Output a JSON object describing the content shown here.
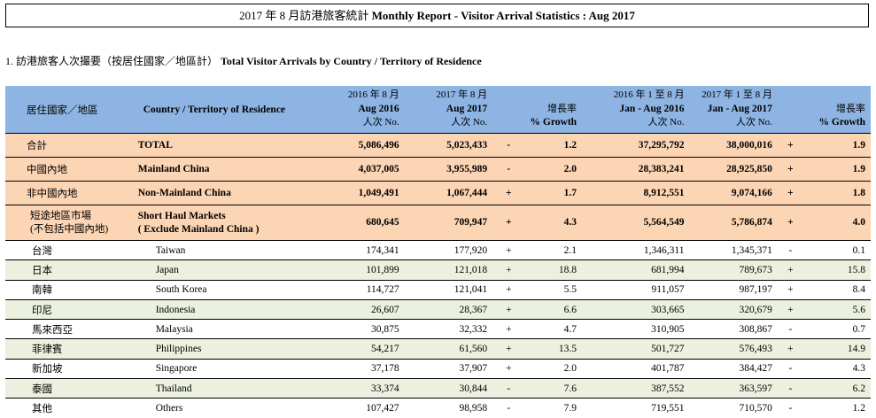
{
  "title": {
    "zh": "2017 年 8 月訪港旅客統計",
    "en": "Monthly Report - Visitor Arrival Statistics : Aug 2017"
  },
  "section": {
    "zh": "1.  訪港旅客人次撮要（按居住國家／地區計）",
    "en": "Total Visitor Arrivals by Country / Territory of Residence"
  },
  "headers": {
    "col_zh": "居住國家／地區",
    "col_en": "Country / Territory of Residence",
    "c1_top": "2016 年 8 月",
    "c1_mid": "Aug 2016",
    "c1_bot": "人次  No.",
    "c2_top": "2017 年 8 月",
    "c2_mid": "Aug 2017",
    "c2_bot": "人次  No.",
    "g1_top": "增長率",
    "g1_bot": "% Growth",
    "c3_top": "2016 年 1 至 8 月",
    "c3_mid": "Jan - Aug 2016",
    "c3_bot": "人次  No.",
    "c4_top": "2017 年 1 至 8 月",
    "c4_mid": "Jan - Aug 2017",
    "c4_bot": "人次  No.",
    "g2_top": "增長率",
    "g2_bot": "% Growth"
  },
  "summary_rows": [
    {
      "zh": "合計",
      "en": "TOTAL",
      "a16": "5,086,496",
      "a17": "5,023,433",
      "s1": "-",
      "g1": "1.2",
      "j16": "37,295,792",
      "j17": "38,000,016",
      "s2": "+",
      "g2": "1.9"
    },
    {
      "zh": "中國內地",
      "en": "Mainland China",
      "a16": "4,037,005",
      "a17": "3,955,989",
      "s1": "-",
      "g1": "2.0",
      "j16": "28,383,241",
      "j17": "28,925,850",
      "s2": "+",
      "g2": "1.9"
    },
    {
      "zh": "非中國內地",
      "en": "Non-Mainland China",
      "a16": "1,049,491",
      "a17": "1,067,444",
      "s1": "+",
      "g1": "1.7",
      "j16": "8,912,551",
      "j17": "9,074,166",
      "s2": "+",
      "g2": "1.8"
    }
  ],
  "short_haul": {
    "zh1": "短途地區市場",
    "zh2": "(不包括中國內地)",
    "en1": "Short Haul Markets",
    "en2": "( Exclude Mainland China )",
    "a16": "680,645",
    "a17": "709,947",
    "s1": "+",
    "g1": "4.3",
    "j16": "5,564,549",
    "j17": "5,786,874",
    "s2": "+",
    "g2": "4.0"
  },
  "rows": [
    {
      "zh": "台灣",
      "en": "Taiwan",
      "a16": "174,341",
      "a17": "177,920",
      "s1": "+",
      "g1": "2.1",
      "j16": "1,346,311",
      "j17": "1,345,371",
      "s2": "-",
      "g2": "0.1"
    },
    {
      "zh": "日本",
      "en": "Japan",
      "a16": "101,899",
      "a17": "121,018",
      "s1": "+",
      "g1": "18.8",
      "j16": "681,994",
      "j17": "789,673",
      "s2": "+",
      "g2": "15.8"
    },
    {
      "zh": "南韓",
      "en": "South Korea",
      "a16": "114,727",
      "a17": "121,041",
      "s1": "+",
      "g1": "5.5",
      "j16": "911,057",
      "j17": "987,197",
      "s2": "+",
      "g2": "8.4"
    },
    {
      "zh": "印尼",
      "en": "Indonesia",
      "a16": "26,607",
      "a17": "28,367",
      "s1": "+",
      "g1": "6.6",
      "j16": "303,665",
      "j17": "320,679",
      "s2": "+",
      "g2": "5.6"
    },
    {
      "zh": "馬來西亞",
      "en": "Malaysia",
      "a16": "30,875",
      "a17": "32,332",
      "s1": "+",
      "g1": "4.7",
      "j16": "310,905",
      "j17": "308,867",
      "s2": "-",
      "g2": "0.7"
    },
    {
      "zh": "菲律賓",
      "en": "Philippines",
      "a16": "54,217",
      "a17": "61,560",
      "s1": "+",
      "g1": "13.5",
      "j16": "501,727",
      "j17": "576,493",
      "s2": "+",
      "g2": "14.9"
    },
    {
      "zh": "新加坡",
      "en": "Singapore",
      "a16": "37,178",
      "a17": "37,907",
      "s1": "+",
      "g1": "2.0",
      "j16": "401,787",
      "j17": "384,427",
      "s2": "-",
      "g2": "4.3"
    },
    {
      "zh": "泰國",
      "en": "Thailand",
      "a16": "33,374",
      "a17": "30,844",
      "s1": "-",
      "g1": "7.6",
      "j16": "387,552",
      "j17": "363,597",
      "s2": "-",
      "g2": "6.2"
    },
    {
      "zh": "其他",
      "en": "Others",
      "a16": "107,427",
      "a17": "98,958",
      "s1": "-",
      "g1": "7.9",
      "j16": "719,551",
      "j17": "710,570",
      "s2": "-",
      "g2": "1.2"
    }
  ]
}
